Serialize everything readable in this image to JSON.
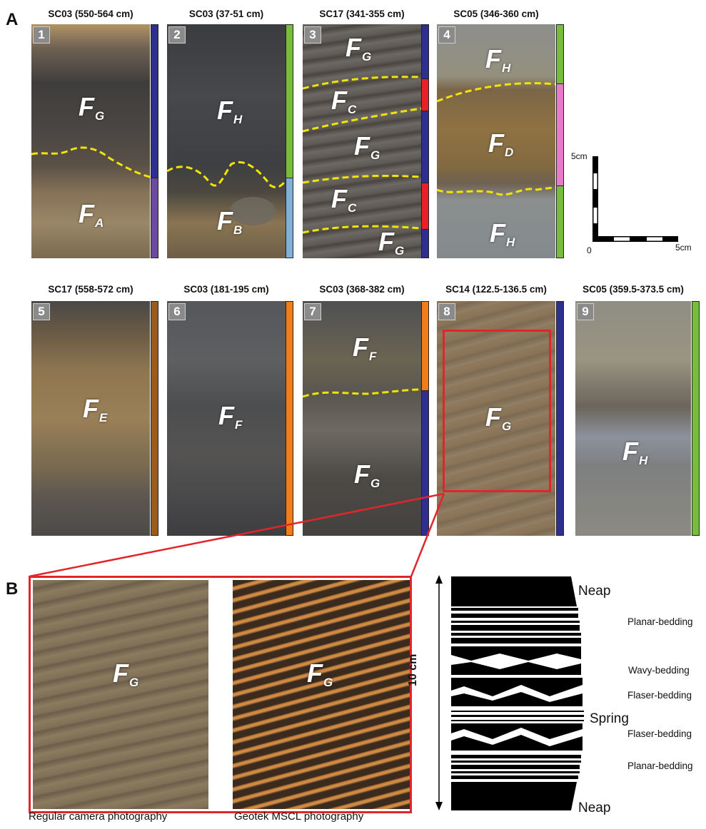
{
  "panel_a_label": "A",
  "panel_b_label": "B",
  "colors": {
    "F_A": "#6d4a9f",
    "F_B": "#7fb1d9",
    "F_C": "#e8202a",
    "F_D": "#e87ac9",
    "F_E": "#9a5c1c",
    "F_F": "#f07d1a",
    "F_G": "#2f2f8f",
    "F_H": "#76bd3e",
    "highlight": "#e0262a",
    "boundary": "#f2e400"
  },
  "cores": [
    {
      "num": "1",
      "title": "SC03 (550-564 cm)",
      "facies": [
        {
          "F": "F",
          "sub": "G"
        },
        {
          "F": "F",
          "sub": "A"
        }
      ]
    },
    {
      "num": "2",
      "title": "SC03 (37-51 cm)",
      "facies": [
        {
          "F": "F",
          "sub": "H"
        },
        {
          "F": "F",
          "sub": "B"
        }
      ]
    },
    {
      "num": "3",
      "title": "SC17 (341-355 cm)",
      "facies": [
        {
          "F": "F",
          "sub": "G"
        },
        {
          "F": "F",
          "sub": "C"
        },
        {
          "F": "F",
          "sub": "G"
        },
        {
          "F": "F",
          "sub": "C"
        },
        {
          "F": "F",
          "sub": "G"
        }
      ]
    },
    {
      "num": "4",
      "title": "SC05 (346-360 cm)",
      "facies": [
        {
          "F": "F",
          "sub": "H"
        },
        {
          "F": "F",
          "sub": "D"
        },
        {
          "F": "F",
          "sub": "H"
        }
      ]
    },
    {
      "num": "5",
      "title": "SC17 (558-572 cm)",
      "facies": [
        {
          "F": "F",
          "sub": "E"
        }
      ]
    },
    {
      "num": "6",
      "title": "SC03 (181-195 cm)",
      "facies": [
        {
          "F": "F",
          "sub": "F"
        }
      ]
    },
    {
      "num": "7",
      "title": "SC03 (368-382 cm)",
      "facies": [
        {
          "F": "F",
          "sub": "F"
        },
        {
          "F": "F",
          "sub": "G"
        }
      ]
    },
    {
      "num": "8",
      "title": "SC14 (122.5-136.5 cm)",
      "facies": [
        {
          "F": "F",
          "sub": "G"
        }
      ]
    },
    {
      "num": "9",
      "title": "SC05 (359.5-373.5 cm)",
      "facies": [
        {
          "F": "F",
          "sub": "H"
        }
      ]
    }
  ],
  "scale_bar": {
    "top_label": "5cm",
    "origin_label": "0",
    "right_label": "5cm"
  },
  "panel_b": {
    "photo_left_facies": {
      "F": "F",
      "sub": "G"
    },
    "photo_right_facies": {
      "F": "F",
      "sub": "G"
    },
    "caption_left": "Regular camera photography",
    "caption_right": "Geotek MSCL photography",
    "height_label": "10 cm",
    "tide_top": "Neap",
    "tide_middle": "Spring",
    "tide_bottom": "Neap",
    "bedding_labels": [
      "Planar-bedding",
      "Wavy-bedding",
      "Flaser-bedding",
      "Flaser-bedding",
      "Planar-bedding"
    ]
  }
}
